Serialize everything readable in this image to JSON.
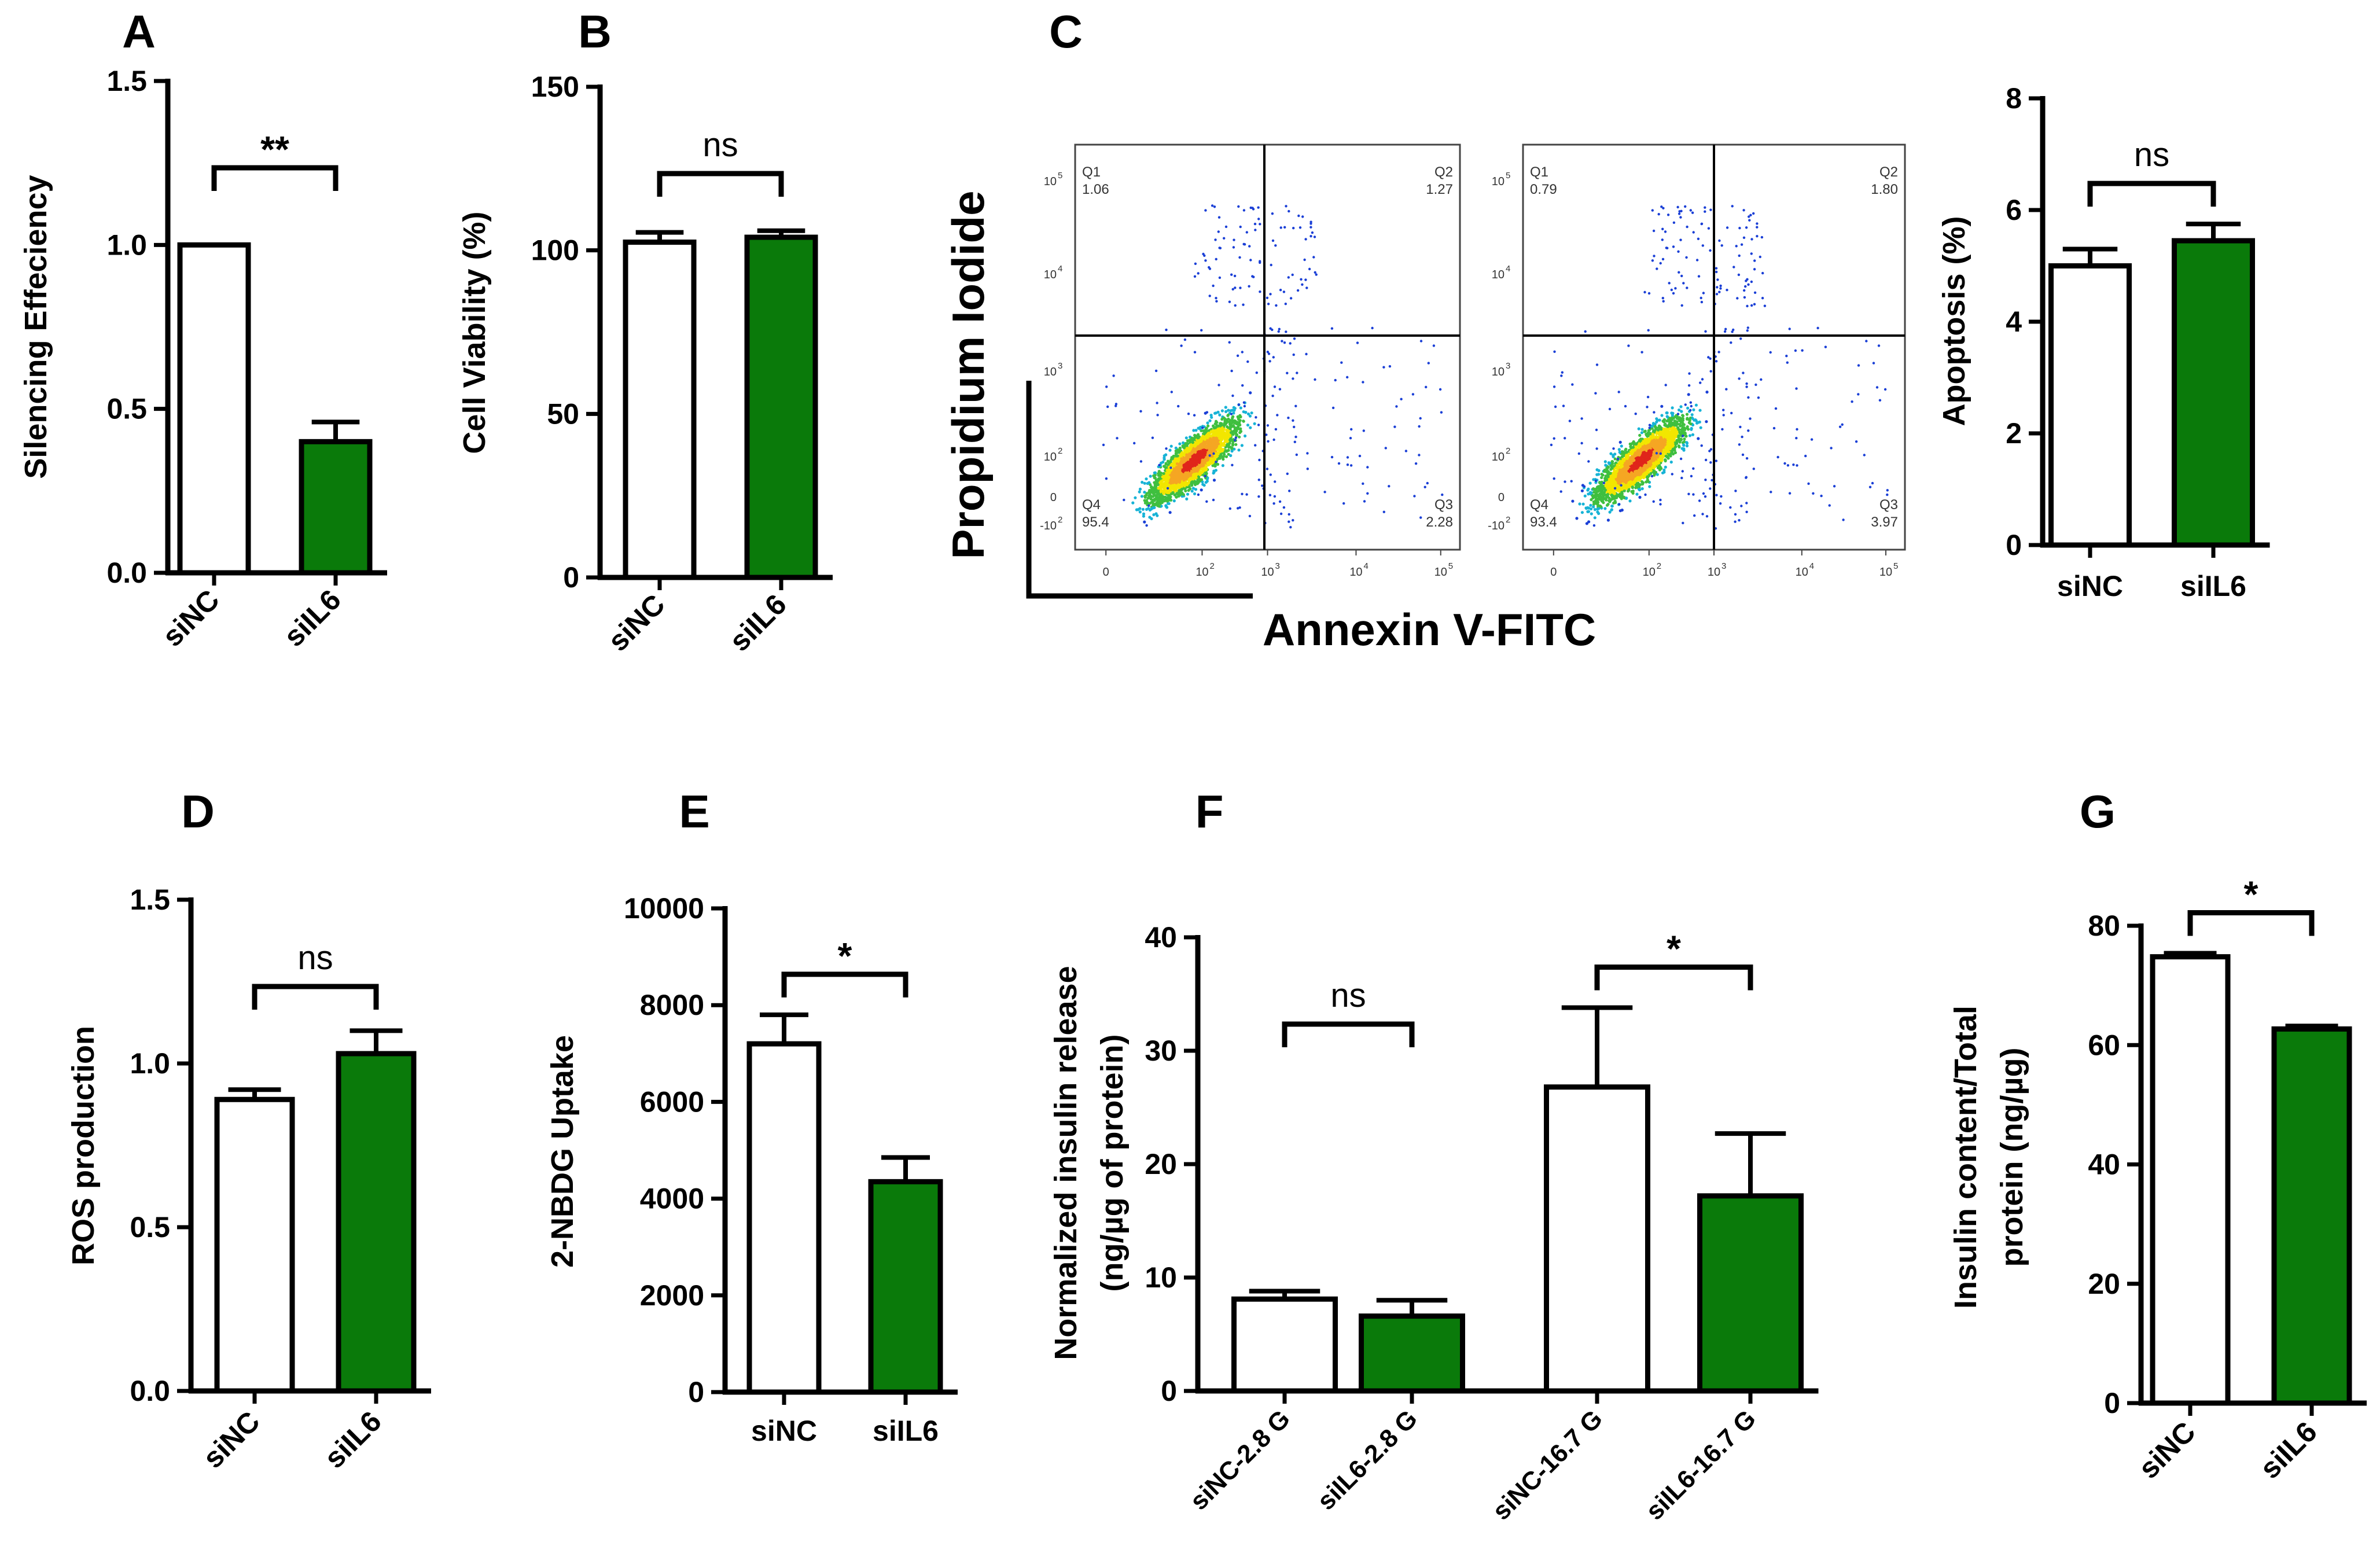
{
  "colors": {
    "siNC": "#ffffff",
    "siIL6": "#0a7a0a",
    "edge": "#000000"
  },
  "chart_data": [
    {
      "panel": "A",
      "type": "bar",
      "categories": [
        "siNC",
        "siIL6"
      ],
      "values": [
        1.0,
        0.4
      ],
      "errors": [
        0,
        0.06
      ],
      "ylabel": "Silencing Effeciency",
      "ylim": [
        0,
        1.5
      ],
      "yticks": [
        "0.0",
        "0.5",
        "1.0",
        "1.5"
      ],
      "significance": [
        {
          "pair": [
            0,
            1
          ],
          "label": "**"
        }
      ]
    },
    {
      "panel": "B",
      "type": "bar",
      "categories": [
        "siNC",
        "siIL6"
      ],
      "values": [
        102.5,
        104
      ],
      "errors": [
        3,
        2
      ],
      "ylabel": "Cell Viability (%)",
      "ylim": [
        0,
        150
      ],
      "yticks": [
        "0",
        "50",
        "100",
        "150"
      ],
      "significance": [
        {
          "pair": [
            0,
            1
          ],
          "label": "ns"
        }
      ]
    },
    {
      "panel": "C",
      "type": "scatter",
      "xlabel": "Annexin V-FITC",
      "ylabel": "Propidium Iodide",
      "plots": [
        {
          "quadrants": {
            "q1": "Q1",
            "v1": "1.06",
            "q2": "Q2",
            "v2": "1.27",
            "q3": "Q3",
            "v3": "2.28",
            "q4": "Q4",
            "v4": "95.4"
          }
        },
        {
          "quadrants": {
            "q1": "Q1",
            "v1": "0.79",
            "q2": "Q2",
            "v2": "1.80",
            "q3": "Q3",
            "v3": "3.97",
            "q4": "Q4",
            "v4": "93.4"
          }
        }
      ],
      "fc_yticks": [
        "10",
        "10",
        "10",
        "10",
        "0",
        "-10"
      ],
      "fc_yexp": [
        "5",
        "4",
        "3",
        "2",
        "",
        "2"
      ],
      "fc_xticks": [
        "0",
        "10",
        "10",
        "10",
        "10"
      ],
      "fc_xexp": [
        "",
        "2",
        "3",
        "4",
        "5"
      ]
    },
    {
      "panel": "C",
      "type": "bar",
      "categories": [
        "siNC",
        "siIL6"
      ],
      "values": [
        5.0,
        5.45
      ],
      "errors": [
        0.3,
        0.3
      ],
      "ylabel": "Apoptosis (%)",
      "ylim": [
        0,
        8
      ],
      "yticks": [
        "0",
        "2",
        "4",
        "6",
        "8"
      ],
      "significance": [
        {
          "pair": [
            0,
            1
          ],
          "label": "ns"
        }
      ]
    },
    {
      "panel": "D",
      "type": "bar",
      "categories": [
        "siNC",
        "siIL6"
      ],
      "values": [
        0.89,
        1.03
      ],
      "errors": [
        0.03,
        0.07
      ],
      "ylabel": "ROS production",
      "ylim": [
        0,
        1.5
      ],
      "yticks": [
        "0.0",
        "0.5",
        "1.0",
        "1.5"
      ],
      "significance": [
        {
          "pair": [
            0,
            1
          ],
          "label": "ns"
        }
      ]
    },
    {
      "panel": "E",
      "type": "bar",
      "categories": [
        "siNC",
        "siIL6"
      ],
      "values": [
        7200,
        4350
      ],
      "errors": [
        600,
        500
      ],
      "ylabel": "2-NBDG Uptake",
      "ylim": [
        0,
        10000
      ],
      "yticks": [
        "0",
        "2000",
        "4000",
        "6000",
        "8000",
        "10000"
      ],
      "significance": [
        {
          "pair": [
            0,
            1
          ],
          "label": "*"
        }
      ]
    },
    {
      "panel": "F",
      "type": "bar",
      "categories": [
        "siNC-2.8 G",
        "siIL6-2.8 G",
        "siNC-16.7 G",
        "siIL6-16.7 G"
      ],
      "values": [
        8.1,
        6.6,
        26.8,
        17.2
      ],
      "errors": [
        0.7,
        1.4,
        7.0,
        5.5
      ],
      "ylabel": [
        "Normalized insulin release",
        "(ng/µg of protein)"
      ],
      "ylim": [
        0,
        40
      ],
      "yticks": [
        "0",
        "10",
        "20",
        "30",
        "40"
      ],
      "significance": [
        {
          "pair": [
            0,
            1
          ],
          "label": "ns"
        },
        {
          "pair": [
            2,
            3
          ],
          "label": "*"
        }
      ]
    },
    {
      "panel": "G",
      "type": "bar",
      "categories": [
        "siNC",
        "siIL6"
      ],
      "values": [
        74.8,
        62.7
      ],
      "errors": [
        0.6,
        0.5
      ],
      "ylabel": [
        "Insulin content/Total",
        "protein (ng/µg)"
      ],
      "ylim": [
        0,
        80
      ],
      "yticks": [
        "0",
        "20",
        "40",
        "60",
        "80"
      ],
      "significance": [
        {
          "pair": [
            0,
            1
          ],
          "label": "*"
        }
      ]
    }
  ]
}
